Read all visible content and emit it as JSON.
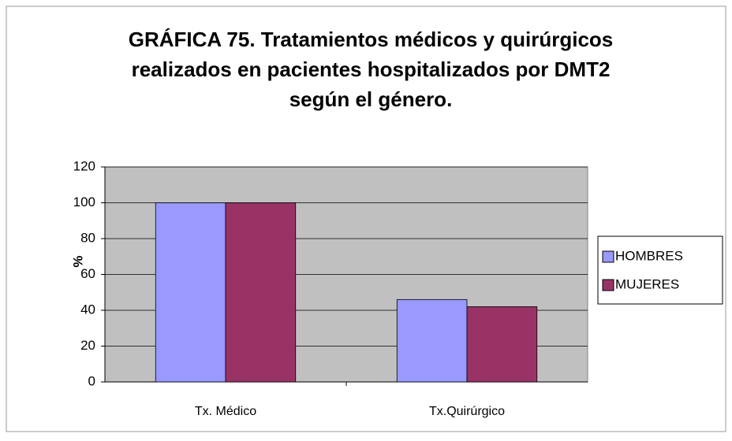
{
  "chart_data": {
    "type": "bar",
    "title": [
      "GRÁFICA 75. Tratamientos médicos y quirúrgicos",
      "realizados en pacientes hospitalizados por DMT2",
      "según el género."
    ],
    "y_label": "%",
    "categories": [
      "Tx. Médico",
      "Tx.Quirúrgico"
    ],
    "series": [
      {
        "name": "HOMBRES",
        "color": "#9999ff",
        "values": [
          100,
          46
        ]
      },
      {
        "name": "MUJERES",
        "color": "#993366",
        "values": [
          100,
          42
        ]
      }
    ],
    "ylim": [
      0,
      120
    ],
    "yticks": [
      0,
      20,
      40,
      60,
      80,
      100,
      120
    ],
    "grid": true,
    "legend": "right"
  }
}
